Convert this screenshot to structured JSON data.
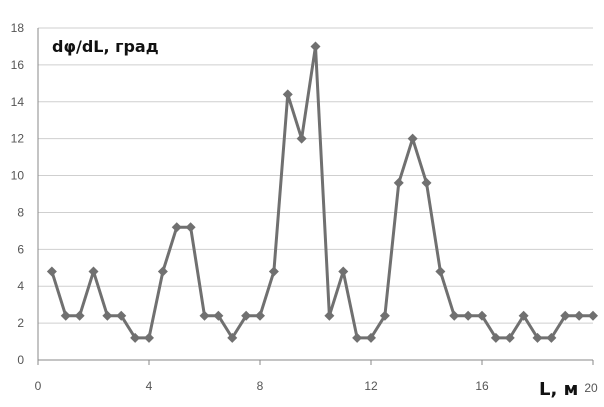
{
  "chart_data": {
    "type": "line",
    "ylabel": "dφ/dL, град",
    "xlabel": "L, м",
    "xlim": [
      0,
      20
    ],
    "ylim": [
      0,
      18
    ],
    "xticks": [
      0,
      4,
      8,
      12,
      16,
      20
    ],
    "yticks": [
      0,
      2,
      4,
      6,
      8,
      10,
      12,
      14,
      16,
      18
    ],
    "grid": true,
    "color": "#707070",
    "series": [
      {
        "x": [
          0.5,
          1,
          1.5,
          2,
          2.5,
          3,
          3.5,
          4,
          4.5,
          5,
          5.5,
          6,
          6.5,
          7,
          7.5,
          8,
          8.5,
          9,
          9.5,
          10,
          10.5,
          11,
          11.5,
          12,
          12.5,
          13,
          13.5,
          14,
          14.5,
          15,
          15.5,
          16,
          16.5,
          17,
          17.5,
          18,
          18.5,
          19,
          19.5,
          20
        ],
        "values": [
          4.8,
          2.4,
          2.4,
          4.8,
          2.4,
          2.4,
          1.2,
          1.2,
          4.8,
          7.2,
          7.2,
          2.4,
          2.4,
          1.2,
          2.4,
          2.4,
          4.8,
          14.4,
          12.0,
          17.0,
          2.4,
          4.8,
          1.2,
          1.2,
          2.4,
          9.6,
          12.0,
          9.6,
          4.8,
          2.4,
          2.4,
          2.4,
          1.2,
          1.2,
          2.4,
          1.2,
          1.2,
          2.4,
          2.4,
          2.4
        ]
      }
    ]
  }
}
